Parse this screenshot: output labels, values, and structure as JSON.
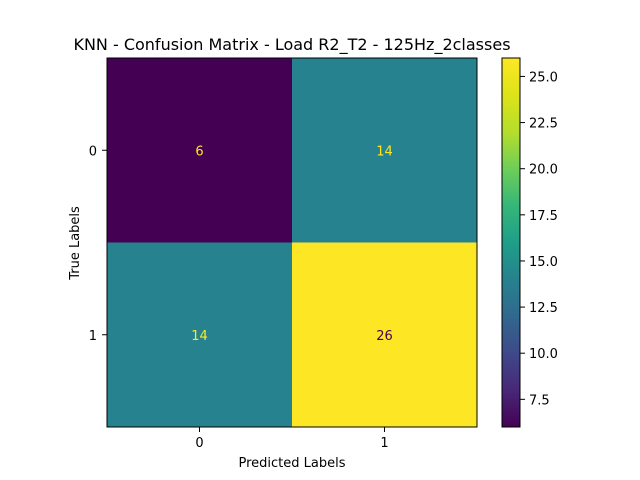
{
  "chart_data": {
    "type": "heatmap",
    "title": "KNN - Confusion Matrix - Load R2_T2 - 125Hz_2classes",
    "xlabel": "Predicted Labels",
    "ylabel": "True Labels",
    "x_categories": [
      "0",
      "1"
    ],
    "y_categories": [
      "0",
      "1"
    ],
    "values": [
      [
        6,
        14
      ],
      [
        14,
        26
      ]
    ],
    "colormap": "viridis",
    "colorbar": {
      "min": 6,
      "max": 26,
      "ticks": [
        7.5,
        10.0,
        12.5,
        15.0,
        17.5,
        20.0,
        22.5,
        25.0
      ],
      "tick_labels": [
        "7.5",
        "10.0",
        "12.5",
        "15.0",
        "17.5",
        "20.0",
        "22.5",
        "25.0"
      ]
    },
    "grid": false,
    "colors": {
      "low_cell_text": "#fde725",
      "high_cell_text": "#440154"
    }
  }
}
